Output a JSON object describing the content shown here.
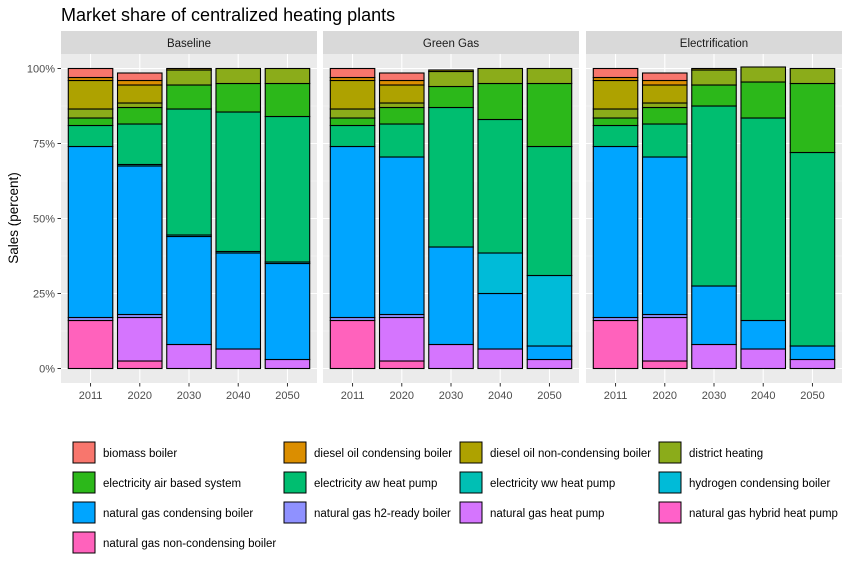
{
  "chart_data": {
    "type": "bar",
    "stacked": true,
    "title": "Market share of centralized heating plants",
    "ylabel": "Sales (percent)",
    "xlabel": "",
    "ylim": [
      0,
      100
    ],
    "yticks": [
      0,
      25,
      50,
      75,
      100
    ],
    "ytick_labels": [
      "0%",
      "25%",
      "50%",
      "75%",
      "100%"
    ],
    "categories": [
      "2011",
      "2020",
      "2030",
      "2040",
      "2050"
    ],
    "legend_position": "bottom",
    "series": [
      {
        "name": "biomass boiler",
        "color": "#F8766D"
      },
      {
        "name": "diesel oil condensing boiler",
        "color": "#DB8E00"
      },
      {
        "name": "diesel oil non-condensing boiler",
        "color": "#AEA200"
      },
      {
        "name": "district heating",
        "color": "#8BAC1A"
      },
      {
        "name": "electricity air based system",
        "color": "#2CB81A"
      },
      {
        "name": "electricity aw heat pump",
        "color": "#00BE70"
      },
      {
        "name": "electricity ww heat pump",
        "color": "#00BFB4"
      },
      {
        "name": "hydrogen condensing boiler",
        "color": "#00BBD8"
      },
      {
        "name": "natural gas condensing boiler",
        "color": "#00A5FF"
      },
      {
        "name": "natural gas h2-ready boiler",
        "color": "#8F91FF"
      },
      {
        "name": "natural gas heat pump",
        "color": "#D575FE"
      },
      {
        "name": "natural gas hybrid heat pump",
        "color": "#FF61C9"
      },
      {
        "name": "natural gas non-condensing boiler",
        "color": "#FF62BC"
      }
    ],
    "panels": [
      {
        "name": "Baseline",
        "bars": [
          [
            3,
            1,
            9.5,
            3,
            2.5,
            7,
            0,
            0,
            57,
            1,
            0,
            0,
            16
          ],
          [
            2.5,
            1.5,
            6,
            1.5,
            5.5,
            13.5,
            0.5,
            0,
            49.5,
            1,
            14.5,
            0,
            2.5
          ],
          [
            0,
            0,
            0.5,
            5,
            8,
            42,
            0.5,
            0,
            36,
            0,
            8,
            0,
            0
          ],
          [
            0,
            0,
            0,
            5,
            9.5,
            46.5,
            0.5,
            0,
            32,
            0,
            6.5,
            0,
            0
          ],
          [
            0,
            0,
            0,
            5,
            11,
            48.5,
            0.5,
            0,
            32,
            0,
            3,
            0,
            0
          ]
        ]
      },
      {
        "name": "Green Gas",
        "bars": [
          [
            3,
            1,
            9.5,
            3,
            2.5,
            7,
            0,
            0,
            57,
            1,
            0,
            0,
            16
          ],
          [
            2.5,
            1.5,
            6,
            1.5,
            5.5,
            11,
            0,
            0,
            52.5,
            1,
            14.5,
            0,
            2.5
          ],
          [
            0,
            0,
            0.5,
            5,
            7,
            46.5,
            0,
            0,
            32.5,
            0,
            8,
            0,
            0
          ],
          [
            0,
            0,
            0,
            5,
            12,
            44.5,
            0,
            13.5,
            18.5,
            0,
            6.5,
            0,
            0
          ],
          [
            0,
            0,
            0,
            5,
            21,
            43,
            0,
            23.5,
            4.5,
            0,
            3,
            0,
            0
          ]
        ]
      },
      {
        "name": "Electrification",
        "bars": [
          [
            3,
            1,
            9.5,
            3,
            2.5,
            7,
            0,
            0,
            57,
            1,
            0,
            0,
            16
          ],
          [
            2.5,
            1.5,
            6,
            1.5,
            5.5,
            11,
            0,
            0,
            52.5,
            1,
            14.5,
            0,
            2.5
          ],
          [
            0,
            0,
            0.5,
            5,
            7,
            60,
            0,
            0,
            19.5,
            0,
            8,
            0,
            0
          ],
          [
            0,
            0,
            0,
            5,
            12,
            67.5,
            0,
            0,
            9.5,
            0,
            6.5,
            0,
            0
          ],
          [
            0,
            0,
            0,
            5,
            23,
            64.5,
            0,
            0,
            4.5,
            0,
            3,
            0,
            0
          ]
        ]
      }
    ]
  }
}
